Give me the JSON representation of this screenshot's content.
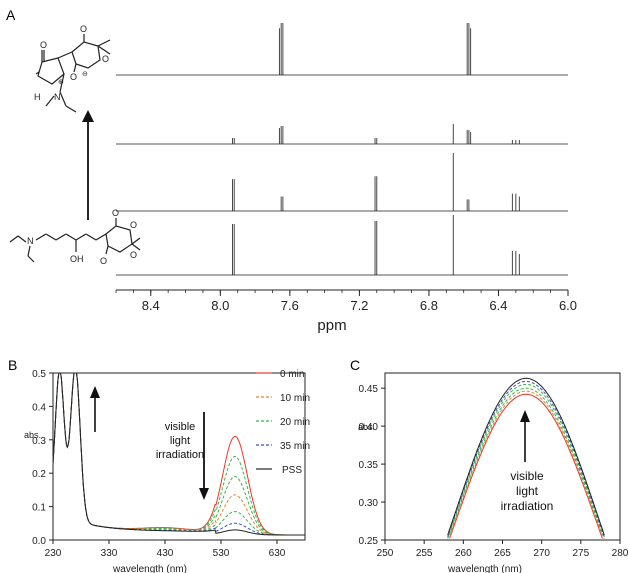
{
  "panels": {
    "a_label": "A",
    "b_label": "B",
    "c_label": "C"
  },
  "structures": {
    "top_atoms": [
      "O",
      "O",
      "O",
      "O",
      "H",
      "N",
      "⊕",
      "⊖"
    ],
    "bottom_atoms": [
      "N",
      "OH",
      "O",
      "O",
      "O",
      "O"
    ]
  },
  "colors": {
    "red": "#e8372a",
    "orange": "#e8833a",
    "green": "#3cb44b",
    "blue": "#3a4fc8",
    "black": "#222222",
    "spectrum": "#555555"
  },
  "chart_data": [
    {
      "panel": "A",
      "type": "line",
      "subtype": "nmr-stack",
      "xlabel": "ppm",
      "xlim": [
        8.6,
        6.0
      ],
      "x_ticks": [
        "8.4",
        "8.0",
        "7.6",
        "7.2",
        "6.8",
        "6.4",
        "6.0"
      ],
      "x_tick_values": [
        8.4,
        8.0,
        7.6,
        7.2,
        6.8,
        6.4,
        6.0
      ],
      "series": [
        {
          "peaks": [
            [
              7.64,
              1.0
            ],
            [
              7.65,
              1.0
            ],
            [
              7.66,
              0.9
            ],
            [
              6.58,
              1.0
            ],
            [
              6.57,
              1.0
            ],
            [
              6.56,
              0.9
            ]
          ]
        },
        {
          "peaks": [
            [
              7.93,
              0.15
            ],
            [
              7.92,
              0.15
            ],
            [
              7.64,
              0.45
            ],
            [
              7.65,
              0.45
            ],
            [
              7.66,
              0.4
            ],
            [
              7.11,
              0.15
            ],
            [
              7.1,
              0.15
            ],
            [
              6.66,
              0.5
            ],
            [
              6.58,
              0.35
            ],
            [
              6.57,
              0.35
            ],
            [
              6.56,
              0.3
            ],
            [
              6.32,
              0.1
            ],
            [
              6.3,
              0.1
            ],
            [
              6.28,
              0.1
            ]
          ]
        },
        {
          "peaks": [
            [
              7.93,
              0.55
            ],
            [
              7.92,
              0.55
            ],
            [
              7.64,
              0.25
            ],
            [
              7.65,
              0.25
            ],
            [
              7.11,
              0.6
            ],
            [
              7.1,
              0.6
            ],
            [
              6.66,
              1.0
            ],
            [
              6.58,
              0.2
            ],
            [
              6.57,
              0.2
            ],
            [
              6.32,
              0.3
            ],
            [
              6.3,
              0.3
            ],
            [
              6.28,
              0.25
            ]
          ]
        },
        {
          "peaks": [
            [
              7.93,
              0.85
            ],
            [
              7.92,
              0.85
            ],
            [
              7.11,
              0.9
            ],
            [
              7.1,
              0.9
            ],
            [
              6.66,
              1.0
            ],
            [
              6.32,
              0.4
            ],
            [
              6.3,
              0.4
            ],
            [
              6.28,
              0.35
            ]
          ]
        }
      ]
    },
    {
      "panel": "B",
      "type": "line",
      "xlabel": "wavelength (nm)",
      "ylabel": "abs.",
      "xlim": [
        230,
        680
      ],
      "ylim": [
        0,
        0.5
      ],
      "x_ticks": [
        "230",
        "330",
        "430",
        "530",
        "630"
      ],
      "x_tick_values": [
        230,
        330,
        430,
        530,
        630
      ],
      "y_ticks": [
        "0.0",
        "0.1",
        "0.2",
        "0.3",
        "0.4",
        "0.5"
      ],
      "y_tick_values": [
        0,
        0.1,
        0.2,
        0.3,
        0.4,
        0.5
      ],
      "legend": [
        "0  min",
        "10 min",
        "20 min",
        "35 min",
        "PSS"
      ],
      "legend_position": "right",
      "annotation": [
        "visible",
        "light",
        "irradiation"
      ],
      "band_center": 555,
      "band_width": 22,
      "visible_peak_values": [
        0.295,
        0.235,
        0.175,
        0.12,
        0.07,
        0.035,
        0.015
      ],
      "visible_colors": [
        "#e8372a",
        "#3cb44b",
        "#3cb44b",
        "#e8833a",
        "#3cb44b",
        "#3a4fc8",
        "#222222"
      ],
      "visible_dashed": [
        false,
        true,
        true,
        true,
        true,
        true,
        false
      ],
      "uv_peaks": [
        {
          "x": 242,
          "y": 0.43
        },
        {
          "x": 270,
          "y": 0.46
        }
      ],
      "uv_valley": {
        "x": 256,
        "y": 0.235
      }
    },
    {
      "panel": "C",
      "type": "line",
      "xlabel": "wavelength (nm)",
      "ylabel": "abs.",
      "xlim": [
        250,
        280
      ],
      "ylim": [
        0.25,
        0.47
      ],
      "x_ticks": [
        "250",
        "255",
        "260",
        "265",
        "270",
        "275",
        "280"
      ],
      "x_tick_values": [
        250,
        255,
        260,
        265,
        270,
        275,
        280
      ],
      "y_ticks": [
        "0.25",
        "0.30",
        "0.35",
        "0.40",
        "0.45"
      ],
      "y_tick_values": [
        0.25,
        0.3,
        0.35,
        0.4,
        0.45
      ],
      "annotation": [
        "visible",
        "light",
        "irradiation"
      ],
      "peak_x": 268,
      "series": [
        {
          "peak": 0.442,
          "color": "#e8372a",
          "dashed": false
        },
        {
          "peak": 0.446,
          "color": "#e8833a",
          "dashed": true
        },
        {
          "peak": 0.45,
          "color": "#3cb44b",
          "dashed": true
        },
        {
          "peak": 0.455,
          "color": "#3cb44b",
          "dashed": true
        },
        {
          "peak": 0.459,
          "color": "#3a4fc8",
          "dashed": true
        },
        {
          "peak": 0.463,
          "color": "#222222",
          "dashed": false
        }
      ]
    }
  ]
}
